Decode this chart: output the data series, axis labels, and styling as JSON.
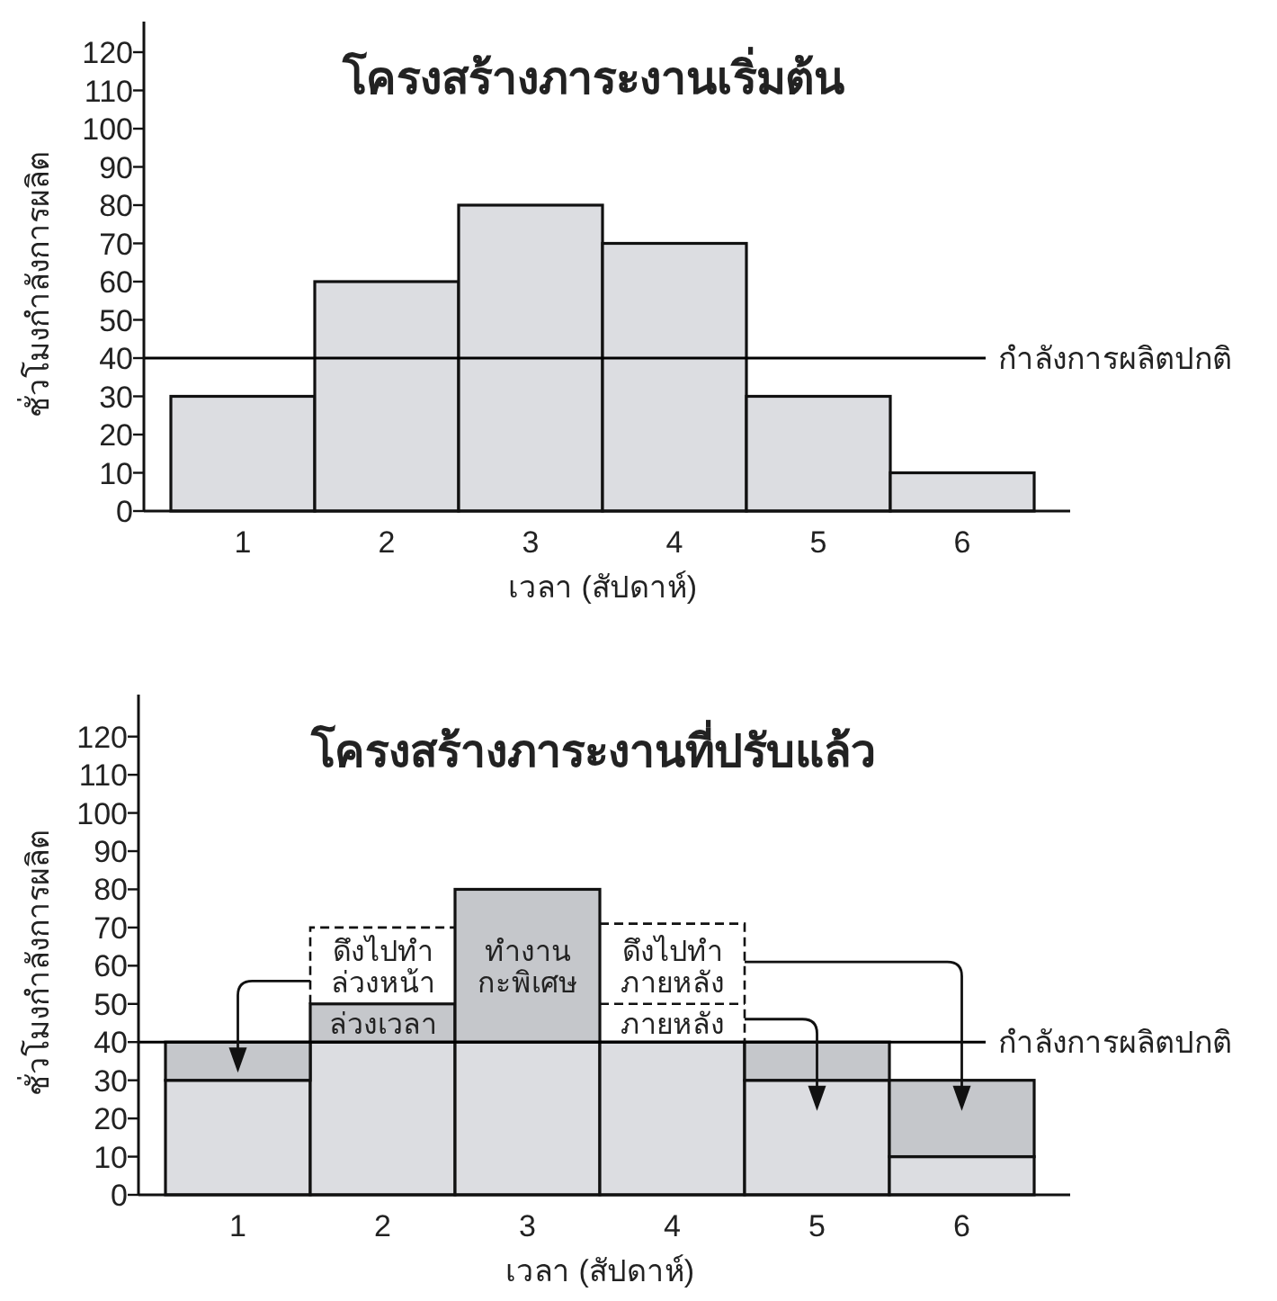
{
  "chart_data": [
    {
      "type": "bar",
      "title": "โครงสร้างภาระงานเริ่มต้น",
      "xlabel": "เวลา (สัปดาห์)",
      "ylabel": "ชั่วโมงกำลังการผลิต",
      "categories": [
        "1",
        "2",
        "3",
        "4",
        "5",
        "6"
      ],
      "series": [
        {
          "color": "#dcdde1",
          "values": [
            30,
            60,
            80,
            70,
            30,
            10
          ]
        }
      ],
      "ylim": [
        0,
        128
      ],
      "yticks": [
        0,
        10,
        20,
        30,
        40,
        50,
        60,
        70,
        80,
        90,
        100,
        110,
        120
      ],
      "ref_lines": [
        {
          "axis": "y",
          "value": 40,
          "label": "กำลังการผลิตปกติ",
          "color": "#000000",
          "line_style": "solid"
        }
      ]
    },
    {
      "type": "bar",
      "stacked": true,
      "title": "โครงสร้างภาระงานที่ปรับแล้ว",
      "xlabel": "เวลา (สัปดาห์)",
      "ylabel": "ชั่วโมงกำลังการผลิต",
      "categories": [
        "1",
        "2",
        "3",
        "4",
        "5",
        "6"
      ],
      "series": [
        {
          "color": "#dcdde1",
          "values": [
            30,
            40,
            40,
            40,
            30,
            10
          ]
        },
        {
          "color": "#c5c7cb",
          "values": [
            10,
            10,
            40,
            0,
            10,
            20
          ]
        }
      ],
      "ylim": [
        0,
        131
      ],
      "yticks": [
        0,
        10,
        20,
        30,
        40,
        50,
        60,
        70,
        80,
        90,
        100,
        110,
        120
      ],
      "ref_lines": [
        {
          "axis": "y",
          "value": 40,
          "label": "กำลังการผลิตปกติ",
          "color": "#000000",
          "line_style": "solid"
        }
      ],
      "annotations": [
        {
          "text": "ดึงไปทำ\nล่วงหน้า",
          "x": "2",
          "y": 50
        },
        {
          "text": "ล่วงเวลา",
          "x": "2",
          "y": 50
        },
        {
          "text": "ทำงาน\nกะพิเศษ",
          "x": "3",
          "y": 80
        },
        {
          "text": "ดึงไปทำ\nภายหลัง",
          "x": "4",
          "y": 40
        },
        {
          "text": "ภายหลัง",
          "x": "4",
          "y": 40
        }
      ]
    }
  ]
}
